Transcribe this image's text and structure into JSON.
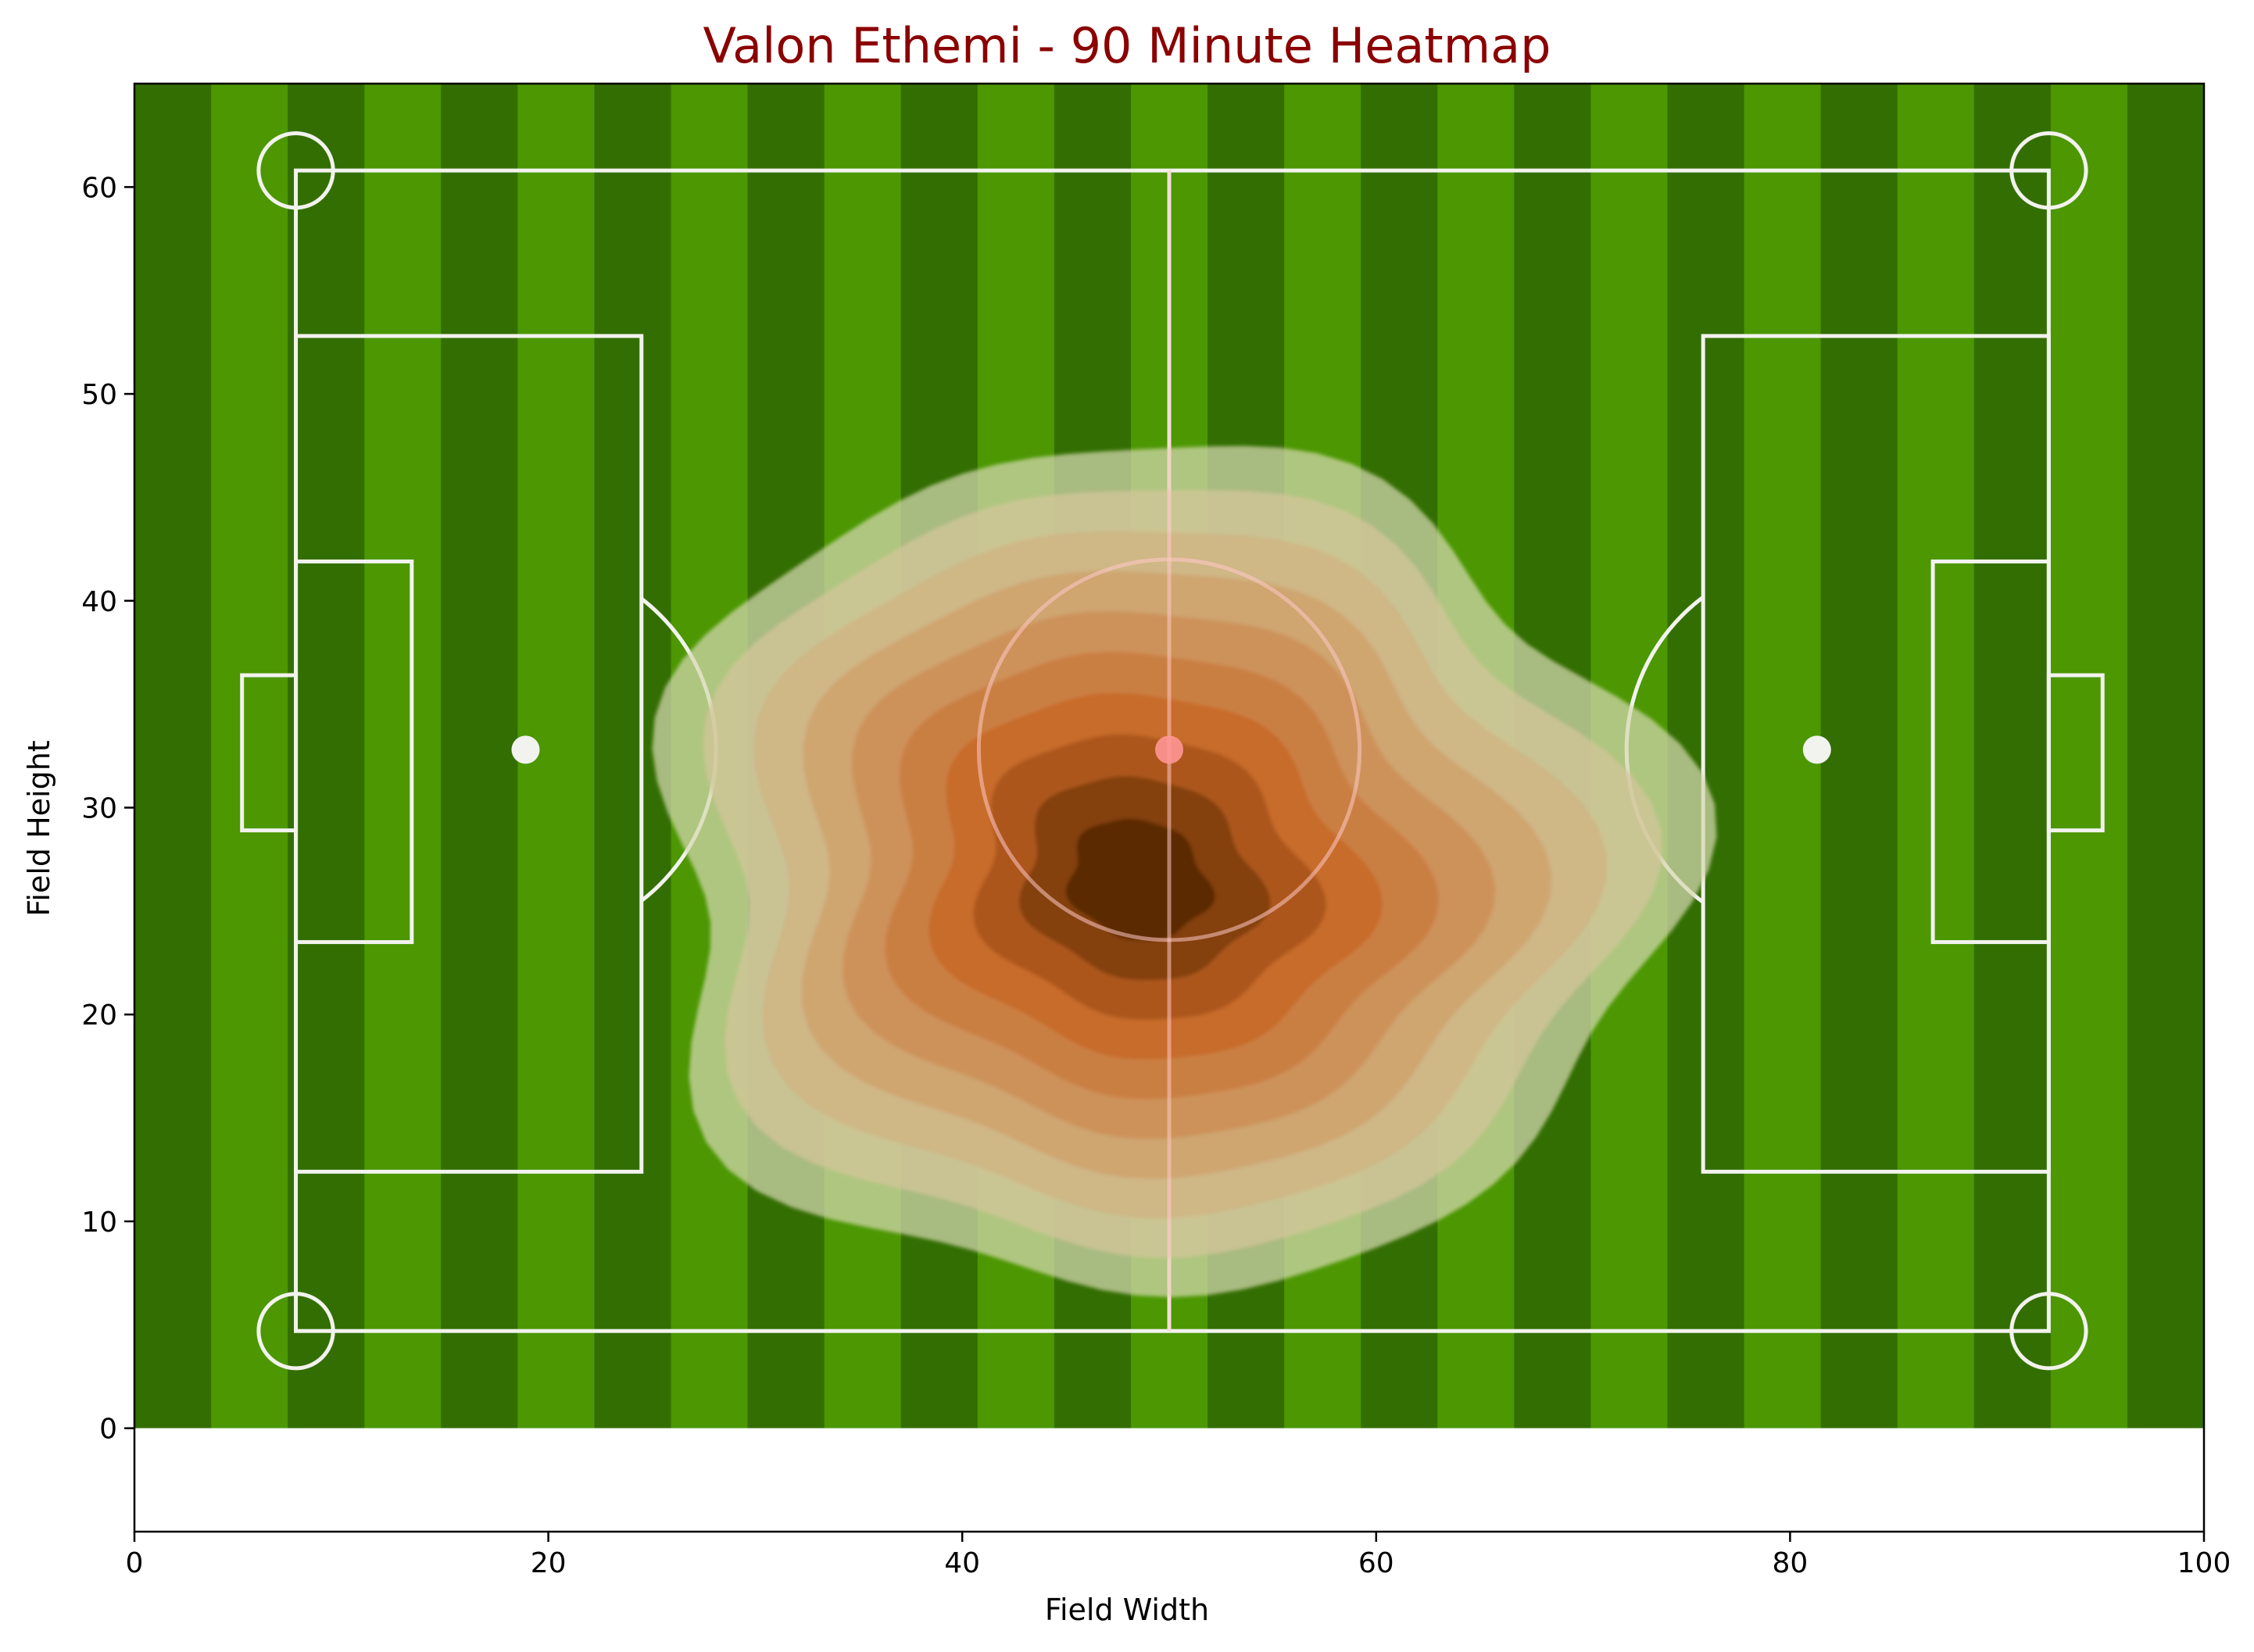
{
  "chart_data": {
    "type": "heatmap",
    "title": "Valon Ethemi - 90 Minute Heatmap",
    "xlabel": "Field Width",
    "ylabel": "Field Height",
    "xlim": [
      0,
      100
    ],
    "ylim": [
      -5,
      65
    ],
    "x_ticks": [
      0,
      20,
      40,
      60,
      80,
      100
    ],
    "y_ticks": [
      0,
      10,
      20,
      30,
      40,
      50,
      60
    ],
    "pitch_extent": {
      "x": [
        0,
        100
      ],
      "y": [
        0,
        65
      ]
    },
    "pitch_lines": {
      "outer": {
        "x": [
          7.8,
          92.5
        ],
        "y": [
          4.7,
          60.8
        ]
      },
      "halfway_x": 50,
      "center": [
        50,
        32.8
      ],
      "center_circle_radius": 9.2,
      "left_penalty_box": {
        "x": [
          7.8,
          24.5
        ],
        "y": [
          12.4,
          52.8
        ]
      },
      "right_penalty_box": {
        "x": [
          75.8,
          92.5
        ],
        "y": [
          12.4,
          52.8
        ]
      },
      "left_six_box": {
        "x": [
          7.8,
          13.4
        ],
        "y": [
          23.5,
          41.9
        ]
      },
      "right_six_box": {
        "x": [
          86.9,
          92.5
        ],
        "y": [
          23.5,
          41.9
        ]
      },
      "left_goal": {
        "x": [
          5.2,
          7.8
        ],
        "y": [
          28.9,
          36.4
        ]
      },
      "right_goal": {
        "x": [
          92.5,
          95.1
        ],
        "y": [
          28.9,
          36.4
        ]
      },
      "left_penalty_spot": [
        18.9,
        32.8
      ],
      "right_penalty_spot": [
        81.3,
        32.8
      ]
    },
    "density_center": [
      48.5,
      26.5
    ],
    "density_levels": 10,
    "colors": {
      "title": "#8b0000",
      "grass_dark": "#336e02",
      "grass_light": "#4c9702",
      "lines": "#f2f2ee",
      "density_low": "#d6d8b0",
      "density_high": "#5a2a06"
    }
  }
}
